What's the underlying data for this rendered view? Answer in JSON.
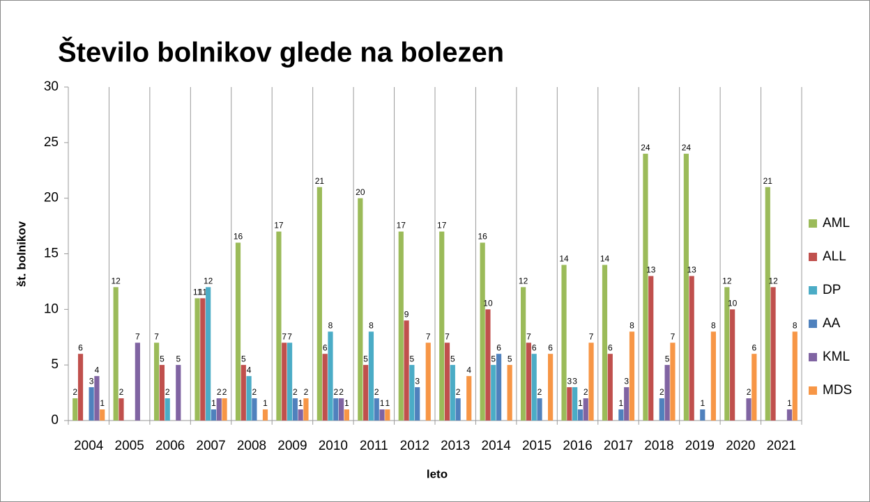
{
  "chart_data": {
    "type": "bar",
    "title": "Število bolnikov glede na bolezen",
    "x_label": "leto",
    "y_label": "št. bolnikov",
    "categories": [
      "2004",
      "2005",
      "2006",
      "2007",
      "2008",
      "2009",
      "2010",
      "2011",
      "2012",
      "2013",
      "2014",
      "2015",
      "2016",
      "2017",
      "2018",
      "2019",
      "2020",
      "2021"
    ],
    "series": [
      {
        "name": "AML",
        "color": "#9bbb59",
        "values": [
          2,
          12,
          7,
          11,
          16,
          17,
          21,
          20,
          17,
          17,
          16,
          12,
          14,
          14,
          24,
          24,
          12,
          21
        ]
      },
      {
        "name": "ALL",
        "color": "#c0504d",
        "values": [
          6,
          2,
          5,
          11,
          5,
          7,
          6,
          5,
          9,
          7,
          10,
          7,
          3,
          6,
          13,
          13,
          10,
          12
        ]
      },
      {
        "name": "DP",
        "color": "#4bacc6",
        "values": [
          null,
          null,
          2,
          12,
          4,
          7,
          8,
          8,
          5,
          5,
          5,
          6,
          3,
          null,
          null,
          null,
          null,
          null
        ]
      },
      {
        "name": "AA",
        "color": "#4f81bd",
        "values": [
          3,
          null,
          null,
          1,
          2,
          2,
          2,
          2,
          3,
          2,
          6,
          2,
          1,
          1,
          2,
          1,
          null,
          null
        ]
      },
      {
        "name": "KML",
        "color": "#8064a2",
        "values": [
          4,
          7,
          5,
          2,
          null,
          1,
          2,
          1,
          null,
          null,
          null,
          null,
          2,
          3,
          5,
          null,
          2,
          1
        ]
      },
      {
        "name": "MDS",
        "color": "#f79646",
        "values": [
          1,
          null,
          null,
          2,
          1,
          2,
          1,
          1,
          7,
          4,
          5,
          6,
          7,
          8,
          7,
          8,
          6,
          8
        ]
      }
    ],
    "ylim": [
      0,
      30
    ],
    "yticks": [
      0,
      5,
      10,
      15,
      20,
      25,
      30
    ],
    "legend": "right"
  }
}
